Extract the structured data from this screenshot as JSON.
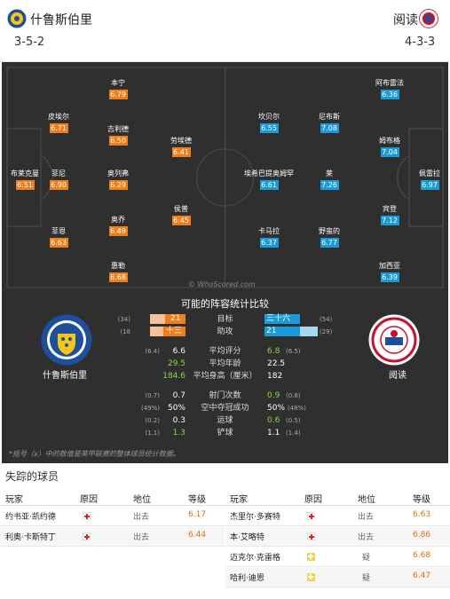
{
  "header": {
    "home_name": "什鲁斯伯里",
    "away_name": "阅读",
    "home_formation": "3-5-2",
    "away_formation": "4-3-3"
  },
  "colors": {
    "home": "#f07f1b",
    "away": "#199bd8",
    "injury": "#d9262c",
    "doubt": "#f4d34f"
  },
  "home_players": [
    {
      "name": "布莱克曼",
      "rating": "6.51"
    },
    {
      "name": "皮埃尔",
      "rating": "6.71"
    },
    {
      "name": "菲尼",
      "rating": "6.90"
    },
    {
      "name": "菲恩",
      "rating": "6.63"
    },
    {
      "name": "本宁",
      "rating": "6.79"
    },
    {
      "name": "吉利德",
      "rating": "6.50"
    },
    {
      "name": "奥列弗",
      "rating": "6.29"
    },
    {
      "name": "奥乔",
      "rating": "6.49"
    },
    {
      "name": "惠勒",
      "rating": "6.68"
    },
    {
      "name": "劳埃德",
      "rating": "6.41"
    },
    {
      "name": "侯普",
      "rating": "6.45"
    }
  ],
  "away_players": [
    {
      "name": "阿布雷法",
      "rating": "6.36"
    },
    {
      "name": "坎贝尔",
      "rating": "6.55"
    },
    {
      "name": "尼布斯",
      "rating": "7.08"
    },
    {
      "name": "姆布格",
      "rating": "7.04"
    },
    {
      "name": "埃希巴提奥姆罕",
      "rating": "6.61"
    },
    {
      "name": "莱",
      "rating": "7.26"
    },
    {
      "name": "佩雷拉",
      "rating": "6.97"
    },
    {
      "name": "卡马拉",
      "rating": "6.37"
    },
    {
      "name": "野蛮的",
      "rating": "6.77"
    },
    {
      "name": "宾登",
      "rating": "7.12"
    },
    {
      "name": "加西亚",
      "rating": "6.39"
    }
  ],
  "watermark": "© WhoScored.com",
  "stats": {
    "title": "可能的阵容统计比较",
    "home_team": "什鲁斯伯里",
    "away_team": "阅读",
    "bars": [
      {
        "label": "目标",
        "home": "21",
        "home_pos": "(34)",
        "away": "三十六",
        "away_pos": "(54)",
        "home_frac": 0.58,
        "away_frac": 1.0
      },
      {
        "label": "助攻",
        "home": "十三",
        "home_pos": "(18",
        "away": "21",
        "away_pos": "(29)",
        "home_frac": 0.62,
        "away_frac": 1.0
      }
    ],
    "rows": [
      {
        "label": "平均评分",
        "home": "6.6",
        "home_pos": "(6.4)",
        "away": "6.8",
        "away_pos": "(6.5)"
      },
      {
        "label": "平均年龄",
        "home": "29.5",
        "home_pos": "",
        "away": "22.5",
        "away_pos": ""
      },
      {
        "label": "平均身高（厘米）",
        "home": "184.6",
        "home_pos": "",
        "away": "182",
        "away_pos": ""
      },
      {
        "label": "射门次数",
        "home": "0.7",
        "home_pos": "(0.7)",
        "away": "0.9",
        "away_pos": "(0.8)"
      },
      {
        "label": "空中夺冠成功",
        "home": "50%",
        "home_pos": "(49%)",
        "away": "50%",
        "away_pos": "(48%)"
      },
      {
        "label": "运球",
        "home": "0.3",
        "home_pos": "(0.2)",
        "away": "0.6",
        "away_pos": "(0.5)"
      },
      {
        "label": "铲球",
        "home": "1.3",
        "home_pos": "(1.1)",
        "away": "1.1",
        "away_pos": "(1.4)"
      }
    ],
    "note": "*括号（x）中的数值是英甲联赛的整体球员统计数据。"
  },
  "missing": {
    "title": "失踪的球员",
    "headers": {
      "player": "玩家",
      "reason": "原因",
      "status": "地位",
      "rating": "等级"
    },
    "home": [
      {
        "name": "约书亚·凯约德",
        "status": "出去",
        "rating": "6.17",
        "type": "injury"
      },
      {
        "name": "利奥·卡斯特丁",
        "status": "出去",
        "rating": "6.44",
        "type": "injury"
      }
    ],
    "away": [
      {
        "name": "杰里尔·多赛特",
        "status": "出去",
        "rating": "6.63",
        "type": "injury"
      },
      {
        "name": "本·艾略特",
        "status": "出去",
        "rating": "6.86",
        "type": "injury"
      },
      {
        "name": "迈克尔·克雷格",
        "status": "疑",
        "rating": "6.68",
        "type": "doubt"
      },
      {
        "name": "哈利·迪恩",
        "status": "疑",
        "rating": "6.47",
        "type": "doubt"
      }
    ]
  }
}
